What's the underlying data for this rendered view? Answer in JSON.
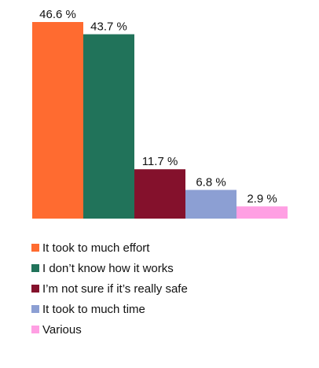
{
  "chart_data": {
    "type": "bar",
    "title": "",
    "xlabel": "",
    "ylabel": "",
    "ylim": [
      0,
      46.6
    ],
    "grid": false,
    "legend_position": "bottom",
    "unit_suffix": " %",
    "categories": [
      "It took to much effort",
      "I don’t know how it works",
      "I’m not sure if it’s really safe",
      "It took to much time",
      "Various"
    ],
    "values": [
      46.6,
      43.7,
      11.7,
      6.8,
      2.9
    ],
    "colors": [
      "#ff6b30",
      "#21735a",
      "#84112c",
      "#8c9fd3",
      "#ff9fe3"
    ]
  }
}
